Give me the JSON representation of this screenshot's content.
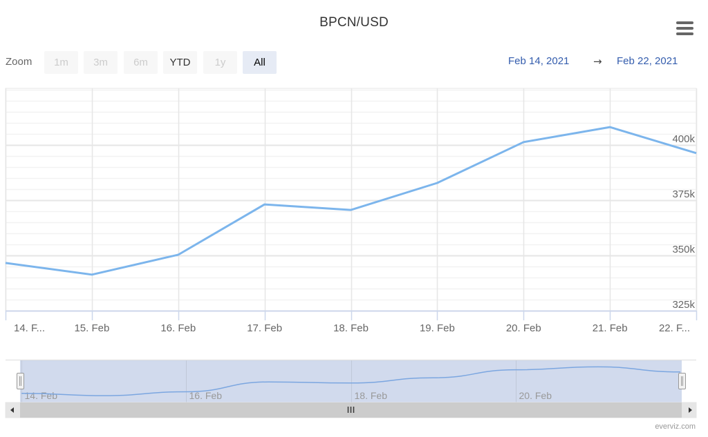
{
  "title": "BPCN/USD",
  "menu": {
    "icon": "hamburger-menu-icon"
  },
  "range_selector": {
    "label": "Zoom",
    "buttons": [
      {
        "label": "1m",
        "state": "disabled"
      },
      {
        "label": "3m",
        "state": "disabled"
      },
      {
        "label": "6m",
        "state": "disabled"
      },
      {
        "label": "YTD",
        "state": "enabled"
      },
      {
        "label": "1y",
        "state": "disabled"
      },
      {
        "label": "All",
        "state": "active"
      }
    ],
    "from_date": "Feb 14, 2021",
    "arrow": "→",
    "to_date": "Feb 22, 2021"
  },
  "navigator": {
    "labels": [
      "14. Feb",
      "16. Feb",
      "18. Feb",
      "20. Feb"
    ],
    "scrollbar": {
      "left_arrow": "◀",
      "right_arrow": "▶",
      "grip": "III"
    }
  },
  "credits": "everviz.com",
  "colors": {
    "series": "#7cb5ec",
    "grid": "#e6e6e6",
    "navigator_mask": "rgba(102,133,194,0.3)",
    "scrollbar": "#cccccc",
    "date_text": "#335cad",
    "active_button_bg": "#e6ebf5"
  },
  "chart_data": {
    "type": "line",
    "title": "BPCN/USD",
    "xlabel": "",
    "ylabel": "",
    "categories": [
      "14. Feb",
      "15. Feb",
      "16. Feb",
      "17. Feb",
      "18. Feb",
      "19. Feb",
      "20. Feb",
      "21. Feb",
      "22. Feb"
    ],
    "x_tick_labels": [
      "14. F...",
      "15. Feb",
      "16. Feb",
      "17. Feb",
      "18. Feb",
      "19. Feb",
      "20. Feb",
      "21. Feb",
      "22. F..."
    ],
    "series": [
      {
        "name": "BPCN/USD",
        "values": [
          346600,
          341300,
          350300,
          373100,
          370600,
          382800,
          401300,
          408100,
          396300
        ]
      }
    ],
    "y_tick_labels": [
      "325k",
      "350k",
      "375k",
      "400k"
    ],
    "y_ticks": [
      325000,
      350000,
      375000,
      400000
    ],
    "ylim": [
      325000,
      425000
    ],
    "y_axis_position": "right",
    "grid": true,
    "minor_grid_step": 5000,
    "legend": "none",
    "date_range": [
      "Feb 14, 2021",
      "Feb 22, 2021"
    ]
  }
}
